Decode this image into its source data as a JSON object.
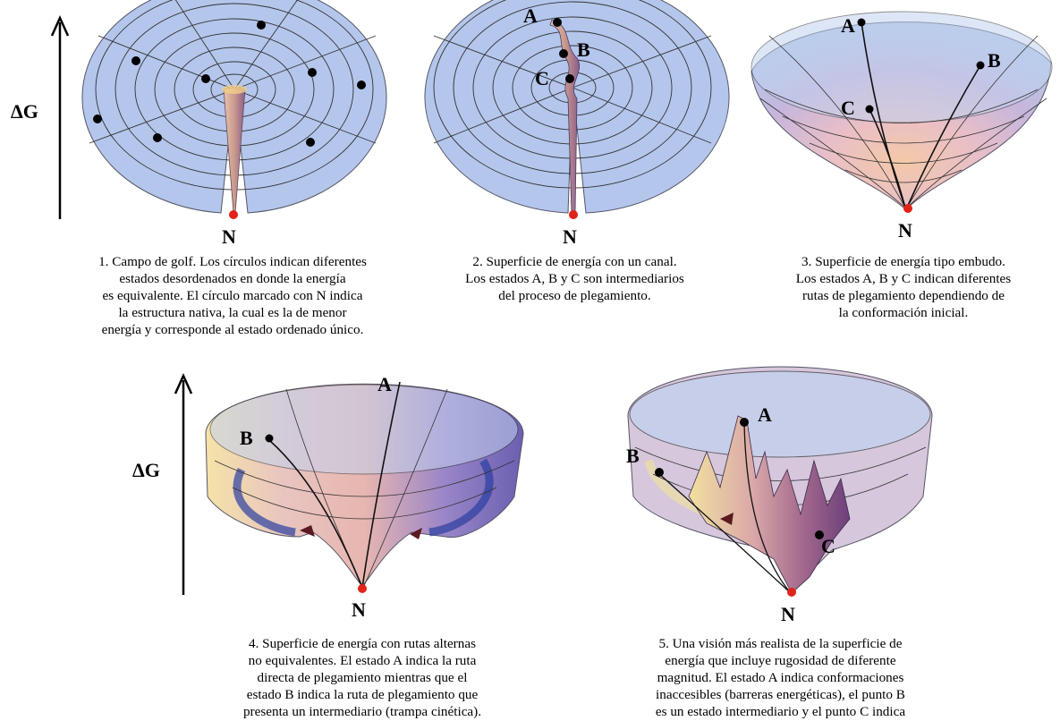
{
  "axis_label": "ΔG",
  "native_label": "N",
  "panels": [
    {
      "captions": [
        "1. Campo de golf. Los círculos indican diferentes",
        "estados desordenados en donde la energía",
        "es equivalente. El círculo marcado con N indica",
        "la estructura nativa, la cual es la de menor",
        "energía y corresponde al estado ordenado único."
      ]
    },
    {
      "point_labels": [
        "A",
        "B",
        "C"
      ],
      "captions": [
        "2. Superficie de energía con un canal.",
        "Los estados A, B y C son intermediarios",
        "del proceso de plegamiento."
      ]
    },
    {
      "point_labels": [
        "A",
        "B",
        "C"
      ],
      "captions": [
        "3. Superficie de energía tipo embudo.",
        "Los estados A, B y C indican diferentes",
        "rutas de plegamiento dependiendo de",
        "la conformación inicial."
      ]
    },
    {
      "point_labels": [
        "A",
        "B"
      ],
      "captions": [
        "4. Superficie de energía con rutas alternas",
        "no equivalentes. El estado A indica la ruta",
        "directa de plegamiento mientras que el",
        "estado B indica la ruta de plegamiento que",
        "presenta un intermediario (trampa cinética)."
      ]
    },
    {
      "point_labels": [
        "A",
        "B",
        "C"
      ],
      "captions": [
        "5. Una visión más realista de la superficie de",
        "energía que incluye rugosidad de diferente",
        "magnitud. El estado A indica conformaciones",
        "inaccesibles (barreras energéticas), el punto B",
        "es un estado intermediario y el punto C indica"
      ]
    }
  ]
}
